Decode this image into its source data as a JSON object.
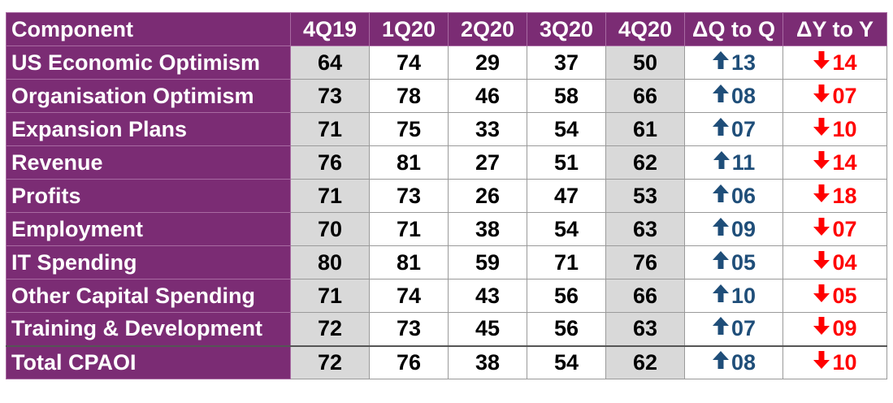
{
  "chart_data": {
    "type": "table",
    "columns": [
      "Component",
      "4Q19",
      "1Q20",
      "2Q20",
      "3Q20",
      "4Q20",
      "ΔQ to Q",
      "ΔY to Y"
    ],
    "rows": [
      {
        "component": "US Economic Optimism",
        "values": [
          "64",
          "74",
          "29",
          "37",
          "50"
        ],
        "dq": "13",
        "dy": "14"
      },
      {
        "component": "Organisation Optimism",
        "values": [
          "73",
          "78",
          "46",
          "58",
          "66"
        ],
        "dq": "08",
        "dy": "07"
      },
      {
        "component": "Expansion Plans",
        "values": [
          "71",
          "75",
          "33",
          "54",
          "61"
        ],
        "dq": "07",
        "dy": "10"
      },
      {
        "component": "Revenue",
        "values": [
          "76",
          "81",
          "27",
          "51",
          "62"
        ],
        "dq": "11",
        "dy": "14"
      },
      {
        "component": "Profits",
        "values": [
          "71",
          "73",
          "26",
          "47",
          "53"
        ],
        "dq": "06",
        "dy": "18"
      },
      {
        "component": "Employment",
        "values": [
          "70",
          "71",
          "38",
          "54",
          "63"
        ],
        "dq": "09",
        "dy": "07"
      },
      {
        "component": "IT Spending",
        "values": [
          "80",
          "81",
          "59",
          "71",
          "76"
        ],
        "dq": "05",
        "dy": "04"
      },
      {
        "component": "Other Capital Spending",
        "values": [
          "71",
          "74",
          "43",
          "56",
          "66"
        ],
        "dq": "10",
        "dy": "05"
      },
      {
        "component": "Training & Development",
        "values": [
          "72",
          "73",
          "45",
          "56",
          "63"
        ],
        "dq": "07",
        "dy": "09"
      },
      {
        "component": "Total CPAOI",
        "values": [
          "72",
          "76",
          "38",
          "54",
          "62"
        ],
        "dq": "08",
        "dy": "10"
      }
    ],
    "dq_direction": "up",
    "dy_direction": "down",
    "arrow_up_glyph": "🡅",
    "colors": {
      "header_bg": "#7b2c74",
      "shaded_cell": "#d9d9d9",
      "up_arrow": "#1f4e79",
      "down_arrow": "#ff0000"
    }
  }
}
